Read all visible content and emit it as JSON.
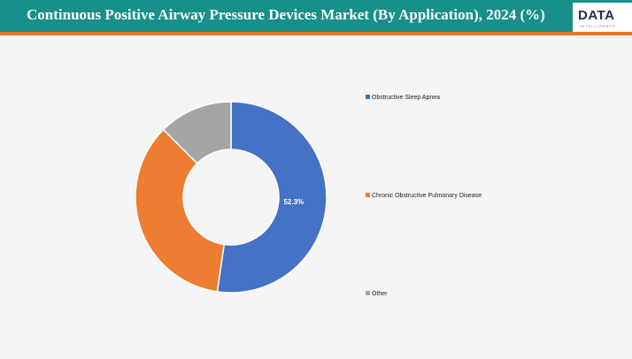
{
  "header": {
    "title": "Continuous Positive Airway Pressure Devices Market (By Application), 2024 (%)",
    "logo_text": "DATA",
    "logo_subtext": "INTELLIGENCE"
  },
  "colors": {
    "header_bg": "#178f8a",
    "accent_rule": "#e8742a"
  },
  "chart_data": {
    "type": "pie",
    "style": "donut",
    "title": "Continuous Positive Airway Pressure Devices Market (By Application), 2024 (%)",
    "categories": [
      "Obstructive Sleep Apnea",
      "Chronic Obstructive Pulmonary Disease",
      "Other"
    ],
    "values": [
      52.3,
      35.2,
      12.5
    ],
    "colors": [
      "#4472c4",
      "#ed7d31",
      "#a5a5a5"
    ],
    "data_labels": [
      "52.3%",
      "",
      ""
    ],
    "legend_position": "right"
  }
}
